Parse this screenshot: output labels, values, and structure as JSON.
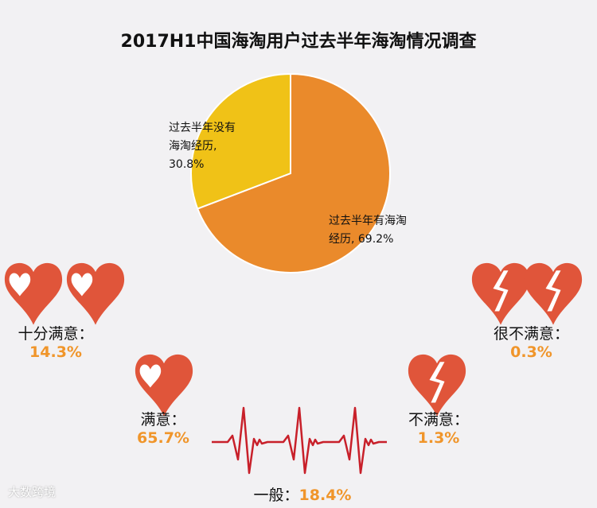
{
  "title": "2017H1中国海淘用户过去半年海淘情况调查",
  "chart_data": {
    "type": "pie",
    "title": "2017H1中国海淘用户过去半年海淘情况调查",
    "slices": [
      {
        "label": "过去半年有海淘经历",
        "value": 69.2,
        "color": "#ea8a2b",
        "text_line1": "过去半年有海淘",
        "text_line2": "经历, 69.2%"
      },
      {
        "label": "过去半年没有海淘经历",
        "value": 30.8,
        "color": "#f0c217",
        "text_line1": "过去半年没有",
        "text_line2": "海淘经历,",
        "text_line3": "30.8%"
      }
    ]
  },
  "satisfaction": [
    {
      "label": "十分满意：",
      "value": "14.3%",
      "icon": "double-heart"
    },
    {
      "label": "满意：",
      "value": "65.7%",
      "icon": "heart"
    },
    {
      "label": "一般：",
      "value": "18.4%",
      "icon": "heartbeat-line"
    },
    {
      "label": "不满意：",
      "value": "1.3%",
      "icon": "broken-heart"
    },
    {
      "label": "很不满意：",
      "value": "0.3%",
      "icon": "double-broken-heart"
    }
  ],
  "colors": {
    "heart": "#e0553a",
    "heartbeat": "#c8202a",
    "value": "#f0952a"
  },
  "watermark": "大数跨境"
}
